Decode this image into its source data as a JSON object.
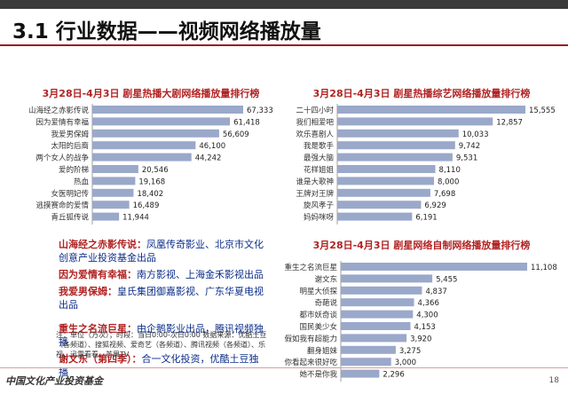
{
  "slide": {
    "title": "3.1 行业数据——视频网络播放量",
    "page_number": "18",
    "org_name": "中国文化产业投资基金"
  },
  "notes": [
    {
      "key": "山海经之赤影传说",
      "sep": "：",
      "value": "凤凰传奇影业、北京市文化创意产业投资基金出品"
    },
    {
      "key": "因为爱情有幸福",
      "sep": "：",
      "value": "南方影视、上海金禾影视出品"
    },
    {
      "key": "我爱男保姆",
      "sep": "：",
      "value": "皇氏集团御嘉影视、广东华夏电视出品"
    },
    {
      "key": "重生之名流巨星",
      "sep": "：",
      "value": "由企鹅影业出品，腾讯视频独播"
    },
    {
      "key": "谢文东（第四季）",
      "sep": "：",
      "value": "合一文化投资，优酷土豆独播"
    }
  ],
  "source_text": "注：单位（万次）；时段：当日0:00-次日0:00 数据来源：优酷土豆（各频道）、搜狐视频、爱奇艺（各频道）、腾讯视频（各频道）、乐视、迅雷看看、芒果TV",
  "chart_data": [
    {
      "type": "bar",
      "orientation": "horizontal",
      "title": "3月28日-4月3日 剧星热播大剧网络播放量排行榜",
      "categories": [
        "山海经之赤影传说",
        "因为爱情有幸福",
        "我爱男保姆",
        "太阳的后裔",
        "两个女人的战争",
        "爱的阶梯",
        "热血",
        "女医明妃传",
        "逃摸赛命的爱情",
        "青丘狐传说"
      ],
      "values": [
        67333,
        61418,
        56609,
        46100,
        44242,
        20546,
        19168,
        18402,
        16489,
        11944
      ],
      "value_labels": [
        "67,333",
        "61,418",
        "56,609",
        "46,100",
        "44,242",
        "20,546",
        "19,168",
        "18,402",
        "16,489",
        "11,944"
      ],
      "xlim": [
        0,
        67333
      ],
      "bar_color": "#9aa8ca",
      "grid": false
    },
    {
      "type": "bar",
      "orientation": "horizontal",
      "title": "3月28日-4月3日 剧星热播综艺网络播放量排行榜",
      "categories": [
        "二十四小时",
        "我们相爱吧",
        "欢乐喜剧人",
        "我是歌手",
        "最强大脑",
        "花样姐姐",
        "谁是大歌神",
        "王牌对王牌",
        "旋风孝子",
        "妈妈咪呀"
      ],
      "values": [
        15555,
        12857,
        10033,
        9742,
        9531,
        8110,
        8000,
        7698,
        6929,
        6191
      ],
      "value_labels": [
        "15,555",
        "12,857",
        "10,033",
        "9,742",
        "9,531",
        "8,110",
        "8,000",
        "7,698",
        "6,929",
        "6,191"
      ],
      "xlim": [
        0,
        15555
      ],
      "bar_color": "#9aa8ca",
      "grid": false
    },
    {
      "type": "bar",
      "orientation": "horizontal",
      "title": "3月28日-4月3日 剧星网络自制网络播放量排行榜",
      "categories": [
        "重生之名流巨星",
        "谢文东",
        "明星大侦探",
        "奇葩说",
        "都市妖奇谈",
        "国民美少女",
        "假如我有超能力",
        "翻身姐妹",
        "你看起来很好吃",
        "她不是你我"
      ],
      "values": [
        11108,
        5455,
        4837,
        4366,
        4300,
        4153,
        3920,
        3275,
        3000,
        2296
      ],
      "value_labels": [
        "11,108",
        "5,455",
        "4,837",
        "4,366",
        "4,300",
        "4,153",
        "3,920",
        "3,275",
        "3,000",
        "2,296"
      ],
      "xlim": [
        0,
        11108
      ],
      "bar_color": "#9aa8ca",
      "grid": false
    }
  ]
}
